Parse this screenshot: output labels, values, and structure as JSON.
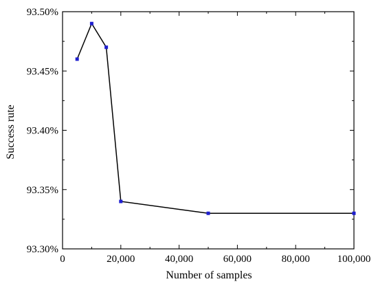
{
  "chart_data": {
    "type": "line",
    "xlabel": "Number of samples",
    "ylabel": "Success rute",
    "xlim": [
      0,
      100000
    ],
    "ylim": [
      93.3,
      93.5
    ],
    "x_ticks": [
      0,
      20000,
      40000,
      60000,
      80000,
      100000
    ],
    "x_tick_labels": [
      "0",
      "20,000",
      "40,000",
      "60,000",
      "80,000",
      "100,000"
    ],
    "y_ticks": [
      93.3,
      93.35,
      93.4,
      93.45,
      93.5
    ],
    "y_tick_labels": [
      "93.30%",
      "93.35%",
      "93.40%",
      "93.45%",
      "93.50%"
    ],
    "series": [
      {
        "x": [
          5000,
          10000,
          15000,
          20000,
          50000,
          100000
        ],
        "y": [
          93.46,
          93.49,
          93.47,
          93.34,
          93.33,
          93.33
        ],
        "color": "#000000",
        "marker_color": "#1f1fd0"
      }
    ],
    "grid": false,
    "legend": "none"
  }
}
